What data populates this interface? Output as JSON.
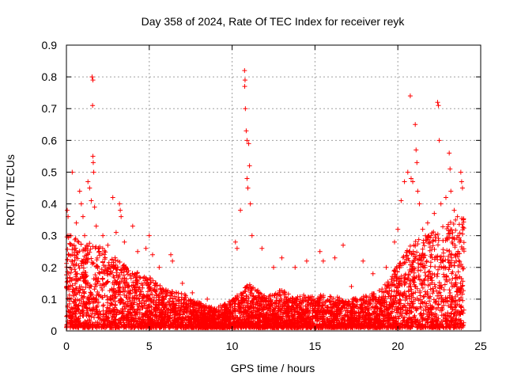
{
  "chart_data": {
    "type": "scatter",
    "title": "Day 358 of 2024, Rate Of TEC Index for receiver reyk",
    "xlabel": "GPS time / hours",
    "ylabel": "ROTI / TECUs",
    "xlim": [
      0,
      25
    ],
    "ylim": [
      0,
      0.9
    ],
    "x_ticks": [
      0,
      5,
      10,
      15,
      20,
      25
    ],
    "x_tick_labels": [
      "0",
      "5",
      "10",
      "15",
      "20",
      "25"
    ],
    "y_ticks": [
      0,
      0.1,
      0.2,
      0.3,
      0.4,
      0.5,
      0.6,
      0.7,
      0.8,
      0.9
    ],
    "y_tick_labels": [
      "0",
      "0.1",
      "0.2",
      "0.3",
      "0.4",
      "0.5",
      "0.6",
      "0.7",
      "0.8",
      "0.9"
    ],
    "grid": true,
    "marker": "plus",
    "color": "#ff0000",
    "data_range_hours": [
      0,
      24
    ],
    "baseline_envelope": {
      "hours": [
        0,
        1,
        2,
        3,
        4,
        5,
        6,
        7,
        8,
        9,
        10,
        11,
        12,
        13,
        14,
        15,
        16,
        17,
        18,
        19,
        20,
        21,
        22,
        23,
        24
      ],
      "upper_roti": [
        0.3,
        0.28,
        0.26,
        0.22,
        0.18,
        0.16,
        0.12,
        0.11,
        0.08,
        0.06,
        0.09,
        0.14,
        0.1,
        0.12,
        0.1,
        0.11,
        0.1,
        0.09,
        0.1,
        0.12,
        0.2,
        0.28,
        0.3,
        0.33,
        0.35
      ]
    },
    "points": [
      {
        "x": 0.05,
        "y": 0.38
      },
      {
        "x": 0.1,
        "y": 0.36
      },
      {
        "x": 0.2,
        "y": 0.3
      },
      {
        "x": 0.35,
        "y": 0.5
      },
      {
        "x": 0.6,
        "y": 0.34
      },
      {
        "x": 0.8,
        "y": 0.44
      },
      {
        "x": 0.9,
        "y": 0.4
      },
      {
        "x": 1.0,
        "y": 0.36
      },
      {
        "x": 1.1,
        "y": 0.3
      },
      {
        "x": 1.3,
        "y": 0.47
      },
      {
        "x": 1.4,
        "y": 0.45
      },
      {
        "x": 1.5,
        "y": 0.41
      },
      {
        "x": 1.55,
        "y": 0.8
      },
      {
        "x": 1.6,
        "y": 0.79
      },
      {
        "x": 1.58,
        "y": 0.71
      },
      {
        "x": 1.6,
        "y": 0.55
      },
      {
        "x": 1.62,
        "y": 0.53
      },
      {
        "x": 1.65,
        "y": 0.5
      },
      {
        "x": 1.7,
        "y": 0.39
      },
      {
        "x": 1.8,
        "y": 0.33
      },
      {
        "x": 2.2,
        "y": 0.3
      },
      {
        "x": 2.5,
        "y": 0.27
      },
      {
        "x": 2.8,
        "y": 0.42
      },
      {
        "x": 3.0,
        "y": 0.31
      },
      {
        "x": 3.2,
        "y": 0.4
      },
      {
        "x": 3.25,
        "y": 0.38
      },
      {
        "x": 3.3,
        "y": 0.36
      },
      {
        "x": 3.5,
        "y": 0.28
      },
      {
        "x": 4.0,
        "y": 0.33
      },
      {
        "x": 4.3,
        "y": 0.25
      },
      {
        "x": 4.8,
        "y": 0.26
      },
      {
        "x": 5.0,
        "y": 0.3
      },
      {
        "x": 5.2,
        "y": 0.24
      },
      {
        "x": 5.6,
        "y": 0.2
      },
      {
        "x": 6.3,
        "y": 0.24
      },
      {
        "x": 6.4,
        "y": 0.22
      },
      {
        "x": 7.0,
        "y": 0.15
      },
      {
        "x": 7.6,
        "y": 0.12
      },
      {
        "x": 8.5,
        "y": 0.1
      },
      {
        "x": 9.3,
        "y": 0.08
      },
      {
        "x": 10.2,
        "y": 0.28
      },
      {
        "x": 10.3,
        "y": 0.26
      },
      {
        "x": 10.5,
        "y": 0.38
      },
      {
        "x": 10.75,
        "y": 0.82
      },
      {
        "x": 10.78,
        "y": 0.79
      },
      {
        "x": 10.76,
        "y": 0.77
      },
      {
        "x": 10.8,
        "y": 0.7
      },
      {
        "x": 10.85,
        "y": 0.63
      },
      {
        "x": 10.9,
        "y": 0.6
      },
      {
        "x": 11.0,
        "y": 0.59
      },
      {
        "x": 11.05,
        "y": 0.52
      },
      {
        "x": 10.9,
        "y": 0.48
      },
      {
        "x": 10.95,
        "y": 0.45
      },
      {
        "x": 11.1,
        "y": 0.4
      },
      {
        "x": 11.2,
        "y": 0.3
      },
      {
        "x": 11.8,
        "y": 0.26
      },
      {
        "x": 12.5,
        "y": 0.2
      },
      {
        "x": 13.0,
        "y": 0.23
      },
      {
        "x": 13.8,
        "y": 0.2
      },
      {
        "x": 14.5,
        "y": 0.22
      },
      {
        "x": 15.3,
        "y": 0.25
      },
      {
        "x": 15.5,
        "y": 0.22
      },
      {
        "x": 16.2,
        "y": 0.23
      },
      {
        "x": 16.7,
        "y": 0.27
      },
      {
        "x": 17.2,
        "y": 0.14
      },
      {
        "x": 17.9,
        "y": 0.22
      },
      {
        "x": 18.5,
        "y": 0.18
      },
      {
        "x": 19.3,
        "y": 0.2
      },
      {
        "x": 19.8,
        "y": 0.28
      },
      {
        "x": 20.0,
        "y": 0.32
      },
      {
        "x": 20.2,
        "y": 0.41
      },
      {
        "x": 20.4,
        "y": 0.47
      },
      {
        "x": 20.6,
        "y": 0.5
      },
      {
        "x": 20.75,
        "y": 0.74
      },
      {
        "x": 20.8,
        "y": 0.48
      },
      {
        "x": 20.9,
        "y": 0.47
      },
      {
        "x": 21.05,
        "y": 0.65
      },
      {
        "x": 21.1,
        "y": 0.57
      },
      {
        "x": 21.15,
        "y": 0.53
      },
      {
        "x": 21.2,
        "y": 0.44
      },
      {
        "x": 21.3,
        "y": 0.4
      },
      {
        "x": 21.5,
        "y": 0.32
      },
      {
        "x": 21.8,
        "y": 0.34
      },
      {
        "x": 22.0,
        "y": 0.3
      },
      {
        "x": 22.2,
        "y": 0.37
      },
      {
        "x": 22.4,
        "y": 0.72
      },
      {
        "x": 22.45,
        "y": 0.71
      },
      {
        "x": 22.5,
        "y": 0.6
      },
      {
        "x": 22.6,
        "y": 0.4
      },
      {
        "x": 22.9,
        "y": 0.42
      },
      {
        "x": 23.1,
        "y": 0.56
      },
      {
        "x": 23.15,
        "y": 0.51
      },
      {
        "x": 23.2,
        "y": 0.44
      },
      {
        "x": 23.4,
        "y": 0.38
      },
      {
        "x": 23.6,
        "y": 0.36
      },
      {
        "x": 23.8,
        "y": 0.5
      },
      {
        "x": 23.85,
        "y": 0.47
      },
      {
        "x": 23.9,
        "y": 0.45
      },
      {
        "x": 23.95,
        "y": 0.35
      }
    ]
  }
}
